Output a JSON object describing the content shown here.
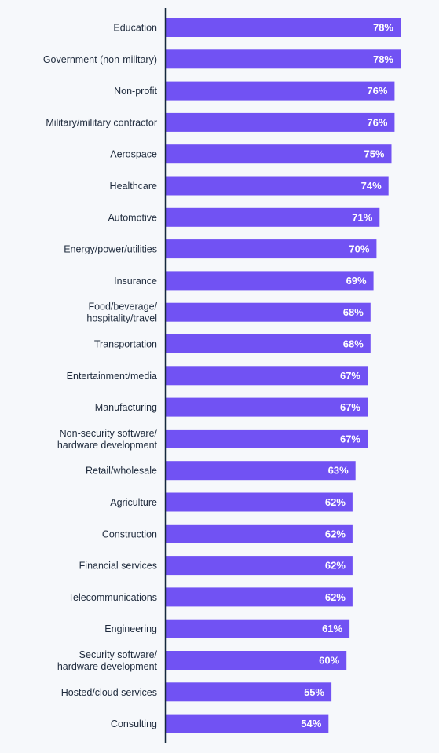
{
  "colors": {
    "background": "#f6f8fb",
    "bar": "#7152f3",
    "axis": "#14283c",
    "label": "#1f2b3d",
    "value_label": "#ffffff"
  },
  "chart_data": {
    "type": "bar",
    "orientation": "horizontal",
    "title": "",
    "xlabel": "",
    "ylabel": "",
    "xlim": [
      0,
      80
    ],
    "grid": false,
    "legend": "none",
    "value_format": "percent",
    "categories": [
      [
        "Education"
      ],
      [
        "Government (non-military)"
      ],
      [
        "Non-profit"
      ],
      [
        "Military/military contractor"
      ],
      [
        "Aerospace"
      ],
      [
        "Healthcare"
      ],
      [
        "Automotive"
      ],
      [
        "Energy/power/utilities"
      ],
      [
        "Insurance"
      ],
      [
        "Food/beverage/",
        "hospitality/travel"
      ],
      [
        "Transportation"
      ],
      [
        "Entertainment/media"
      ],
      [
        "Manufacturing"
      ],
      [
        "Non-security software/",
        "hardware development"
      ],
      [
        "Retail/wholesale"
      ],
      [
        "Agriculture"
      ],
      [
        "Construction"
      ],
      [
        "Financial services"
      ],
      [
        "Telecommunications"
      ],
      [
        "Engineering"
      ],
      [
        "Security software/",
        "hardware development"
      ],
      [
        "Hosted/cloud services"
      ],
      [
        "Consulting"
      ]
    ],
    "values": [
      78,
      78,
      76,
      76,
      75,
      74,
      71,
      70,
      69,
      68,
      68,
      67,
      67,
      67,
      63,
      62,
      62,
      62,
      62,
      61,
      60,
      55,
      54
    ],
    "value_labels": [
      "78%",
      "78%",
      "76%",
      "76%",
      "75%",
      "74%",
      "71%",
      "70%",
      "69%",
      "68%",
      "68%",
      "67%",
      "67%",
      "67%",
      "63%",
      "62%",
      "62%",
      "62%",
      "62%",
      "61%",
      "60%",
      "55%",
      "54%"
    ]
  }
}
